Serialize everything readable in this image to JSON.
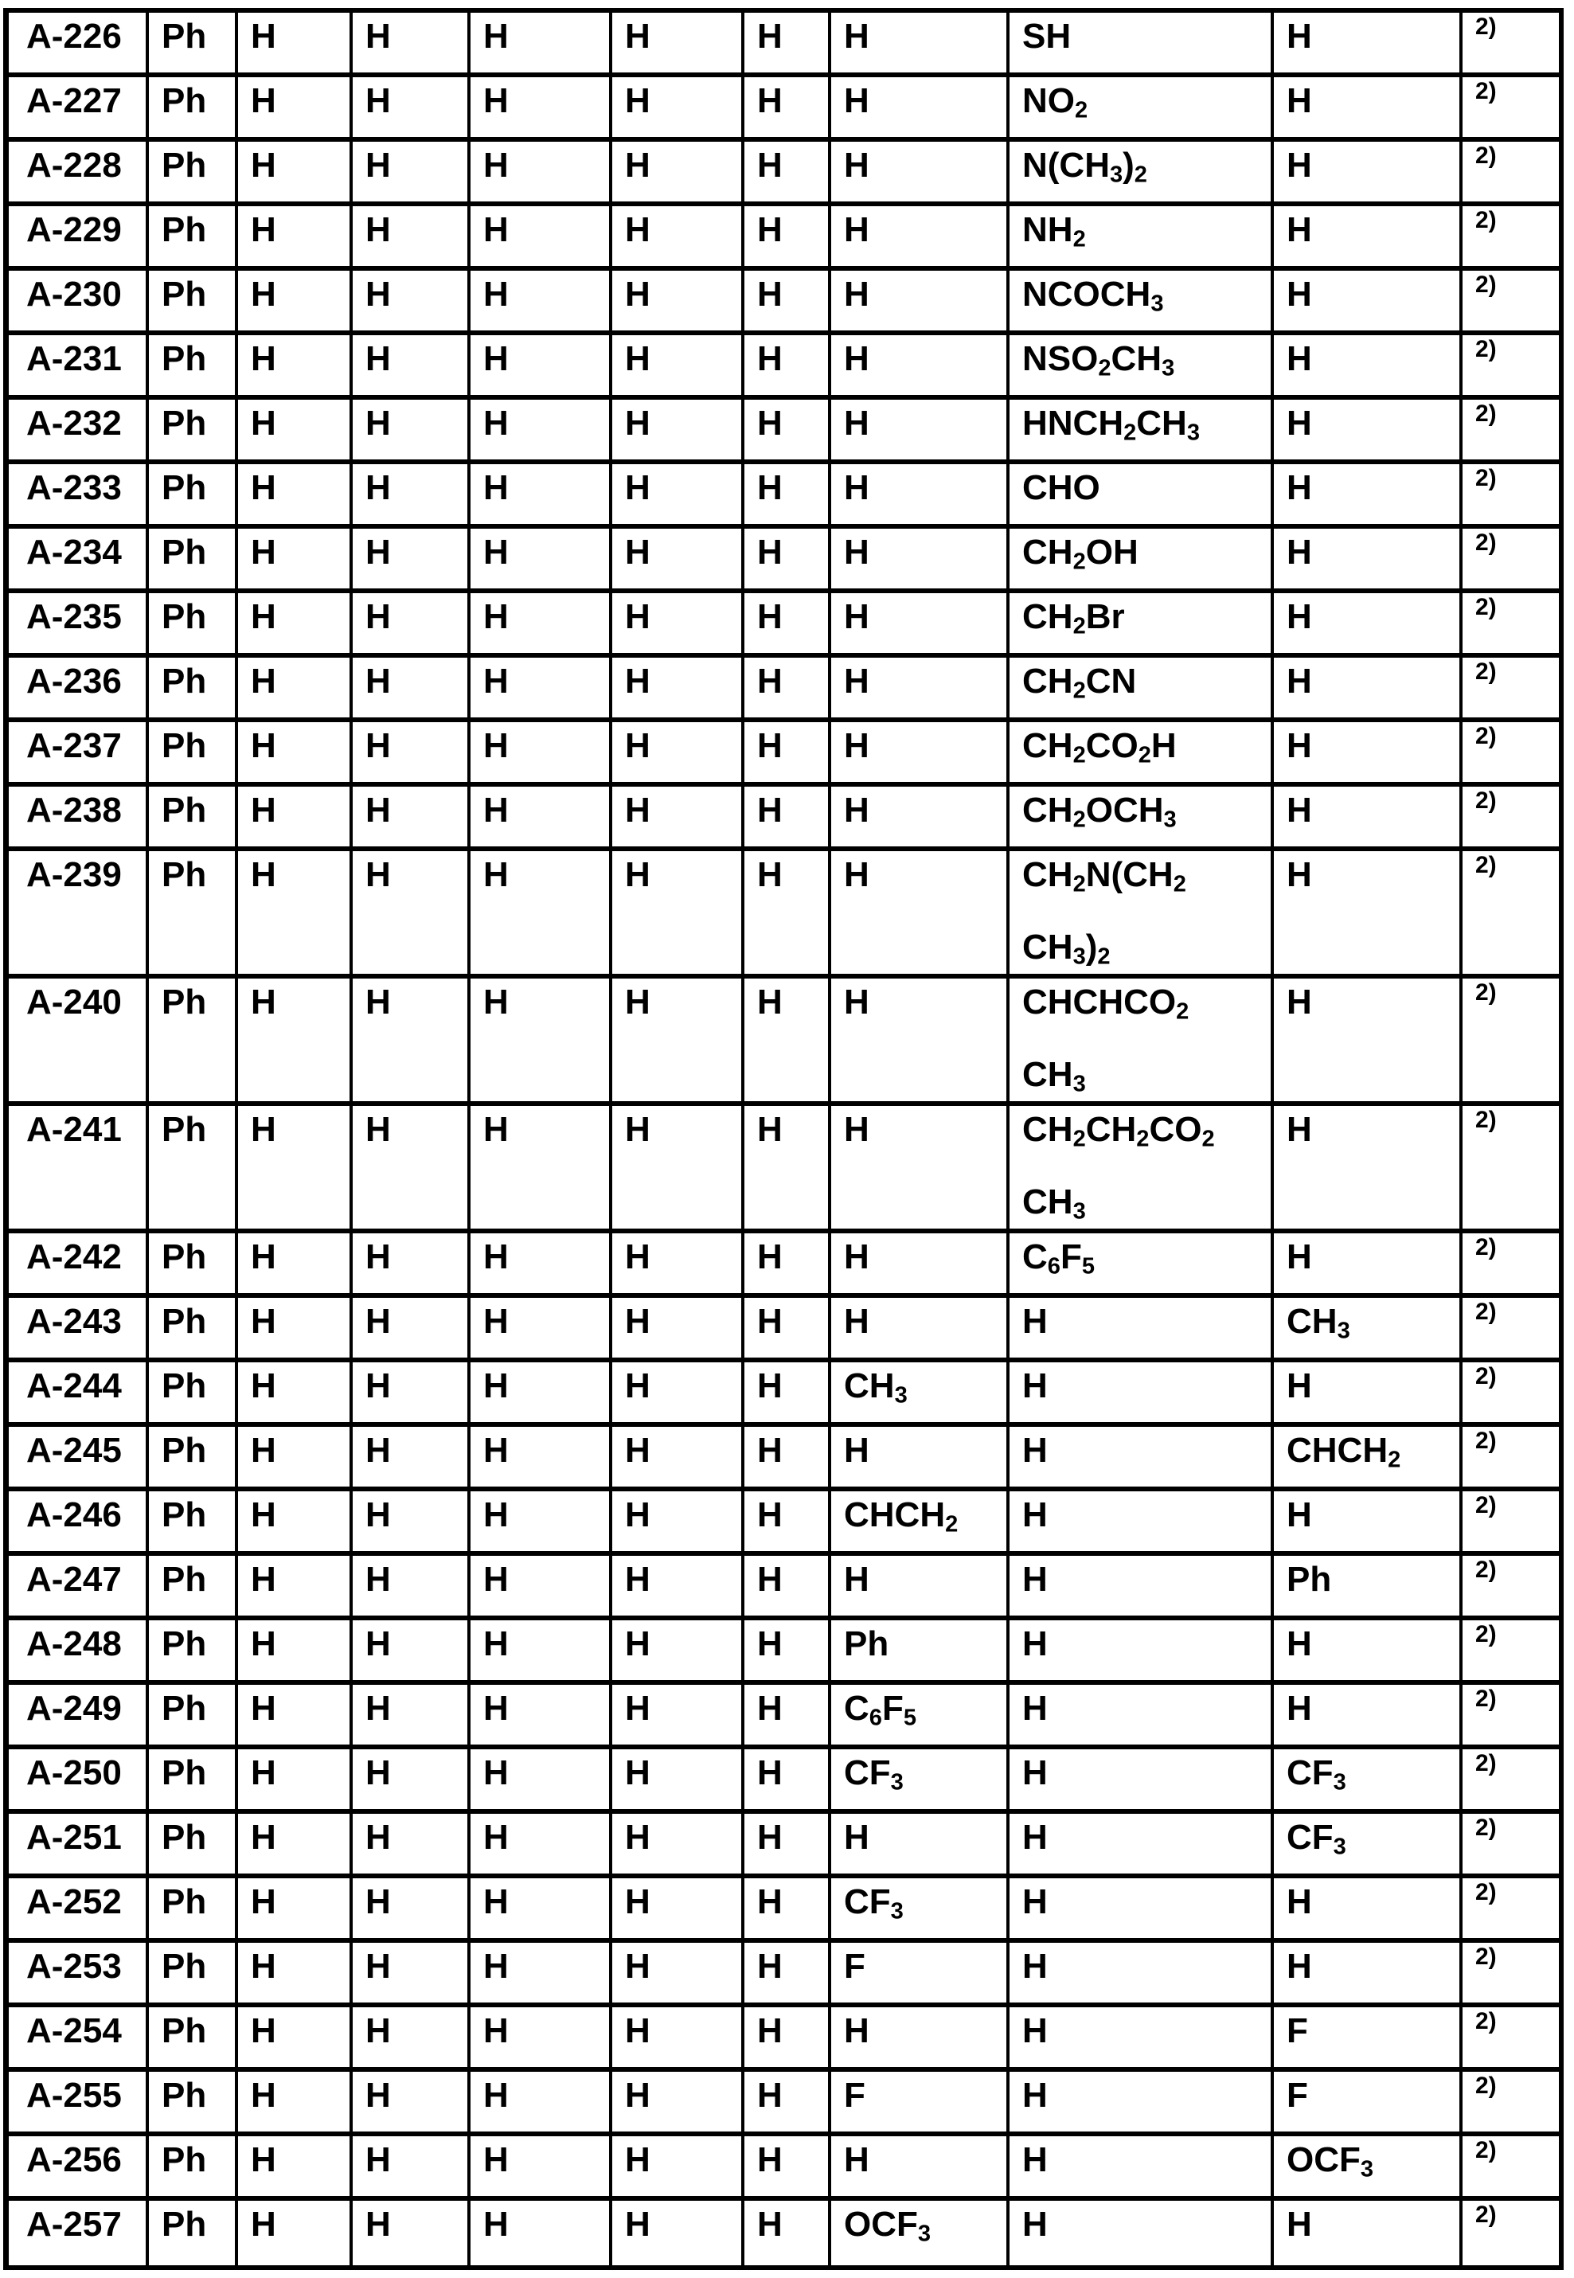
{
  "document": {
    "kind": "compound-substituent-table",
    "colors": {
      "ink": "#000000",
      "paper": "#ffffff",
      "grid_lines": "#000000"
    },
    "footnote_marker": "2)"
  },
  "table": {
    "rows": [
      {
        "id": "A-226",
        "cells": [
          "Ph",
          "H",
          "H",
          "H",
          "H",
          "H",
          "H",
          "SH",
          "H"
        ],
        "note": "2)"
      },
      {
        "id": "A-227",
        "cells": [
          "Ph",
          "H",
          "H",
          "H",
          "H",
          "H",
          "H",
          "NO_{2}",
          "H"
        ],
        "note": "2)"
      },
      {
        "id": "A-228",
        "cells": [
          "Ph",
          "H",
          "H",
          "H",
          "H",
          "H",
          "H",
          "N(CH_{3})_{2}",
          "H"
        ],
        "note": "2)"
      },
      {
        "id": "A-229",
        "cells": [
          "Ph",
          "H",
          "H",
          "H",
          "H",
          "H",
          "H",
          "NH_{2}",
          "H"
        ],
        "note": "2)"
      },
      {
        "id": "A-230",
        "cells": [
          "Ph",
          "H",
          "H",
          "H",
          "H",
          "H",
          "H",
          "NCOCH_{3}",
          "H"
        ],
        "note": "2)"
      },
      {
        "id": "A-231",
        "cells": [
          "Ph",
          "H",
          "H",
          "H",
          "H",
          "H",
          "H",
          "NSO_{2}CH_{3}",
          "H"
        ],
        "note": "2)"
      },
      {
        "id": "A-232",
        "cells": [
          "Ph",
          "H",
          "H",
          "H",
          "H",
          "H",
          "H",
          "HNCH_{2}CH_{3}",
          "H"
        ],
        "note": "2)"
      },
      {
        "id": "A-233",
        "cells": [
          "Ph",
          "H",
          "H",
          "H",
          "H",
          "H",
          "H",
          "CHO",
          "H"
        ],
        "note": "2)"
      },
      {
        "id": "A-234",
        "cells": [
          "Ph",
          "H",
          "H",
          "H",
          "H",
          "H",
          "H",
          "CH_{2}OH",
          "H"
        ],
        "note": "2)"
      },
      {
        "id": "A-235",
        "cells": [
          "Ph",
          "H",
          "H",
          "H",
          "H",
          "H",
          "H",
          "CH_{2}Br",
          "H"
        ],
        "note": "2)"
      },
      {
        "id": "A-236",
        "cells": [
          "Ph",
          "H",
          "H",
          "H",
          "H",
          "H",
          "H",
          "CH_{2}CN",
          "H"
        ],
        "note": "2)"
      },
      {
        "id": "A-237",
        "cells": [
          "Ph",
          "H",
          "H",
          "H",
          "H",
          "H",
          "H",
          "CH_{2}CO_{2}H",
          "H"
        ],
        "note": "2)"
      },
      {
        "id": "A-238",
        "cells": [
          "Ph",
          "H",
          "H",
          "H",
          "H",
          "H",
          "H",
          "CH_{2}OCH_{3}",
          "H"
        ],
        "note": "2)"
      },
      {
        "id": "A-239",
        "cells": [
          "Ph",
          "H",
          "H",
          "H",
          "H",
          "H",
          "H",
          [
            "CH_{2}N(CH_{2}",
            "CH_{3})_{2}"
          ],
          "H"
        ],
        "note": "2)"
      },
      {
        "id": "A-240",
        "cells": [
          "Ph",
          "H",
          "H",
          "H",
          "H",
          "H",
          "H",
          [
            "CHCHCO_{2}",
            "CH_{3}"
          ],
          "H"
        ],
        "note": "2)"
      },
      {
        "id": "A-241",
        "cells": [
          "Ph",
          "H",
          "H",
          "H",
          "H",
          "H",
          "H",
          [
            "CH_{2}CH_{2}CO_{2}",
            "CH_{3}"
          ],
          "H"
        ],
        "note": "2)"
      },
      {
        "id": "A-242",
        "cells": [
          "Ph",
          "H",
          "H",
          "H",
          "H",
          "H",
          "H",
          "C_{6}F_{5}",
          "H"
        ],
        "note": "2)"
      },
      {
        "id": "A-243",
        "cells": [
          "Ph",
          "H",
          "H",
          "H",
          "H",
          "H",
          "H",
          "H",
          "CH_{3}"
        ],
        "note": "2)"
      },
      {
        "id": "A-244",
        "cells": [
          "Ph",
          "H",
          "H",
          "H",
          "H",
          "H",
          "CH_{3}",
          "H",
          "H"
        ],
        "note": "2)"
      },
      {
        "id": "A-245",
        "cells": [
          "Ph",
          "H",
          "H",
          "H",
          "H",
          "H",
          "H",
          "H",
          "CHCH_{2}"
        ],
        "note": "2)"
      },
      {
        "id": "A-246",
        "cells": [
          "Ph",
          "H",
          "H",
          "H",
          "H",
          "H",
          "CHCH_{2}",
          "H",
          "H"
        ],
        "note": "2)"
      },
      {
        "id": "A-247",
        "cells": [
          "Ph",
          "H",
          "H",
          "H",
          "H",
          "H",
          "H",
          "H",
          "Ph"
        ],
        "note": "2)"
      },
      {
        "id": "A-248",
        "cells": [
          "Ph",
          "H",
          "H",
          "H",
          "H",
          "H",
          "Ph",
          "H",
          "H"
        ],
        "note": "2)"
      },
      {
        "id": "A-249",
        "cells": [
          "Ph",
          "H",
          "H",
          "H",
          "H",
          "H",
          "C_{6}F_{5}",
          "H",
          "H"
        ],
        "note": "2)"
      },
      {
        "id": "A-250",
        "cells": [
          "Ph",
          "H",
          "H",
          "H",
          "H",
          "H",
          "CF_{3}",
          "H",
          "CF_{3}"
        ],
        "note": "2)"
      },
      {
        "id": "A-251",
        "cells": [
          "Ph",
          "H",
          "H",
          "H",
          "H",
          "H",
          "H",
          "H",
          "CF_{3}"
        ],
        "note": "2)"
      },
      {
        "id": "A-252",
        "cells": [
          "Ph",
          "H",
          "H",
          "H",
          "H",
          "H",
          "CF_{3}",
          "H",
          "H"
        ],
        "note": "2)"
      },
      {
        "id": "A-253",
        "cells": [
          "Ph",
          "H",
          "H",
          "H",
          "H",
          "H",
          "F",
          "H",
          "H"
        ],
        "note": "2)"
      },
      {
        "id": "A-254",
        "cells": [
          "Ph",
          "H",
          "H",
          "H",
          "H",
          "H",
          "H",
          "H",
          "F"
        ],
        "note": "2)"
      },
      {
        "id": "A-255",
        "cells": [
          "Ph",
          "H",
          "H",
          "H",
          "H",
          "H",
          "F",
          "H",
          "F"
        ],
        "note": "2)"
      },
      {
        "id": "A-256",
        "cells": [
          "Ph",
          "H",
          "H",
          "H",
          "H",
          "H",
          "H",
          "H",
          "OCF_{3}"
        ],
        "note": "2)"
      },
      {
        "id": "A-257",
        "cells": [
          "Ph",
          "H",
          "H",
          "H",
          "H",
          "H",
          "OCF_{3}",
          "H",
          "H"
        ],
        "note": "2)"
      }
    ]
  }
}
